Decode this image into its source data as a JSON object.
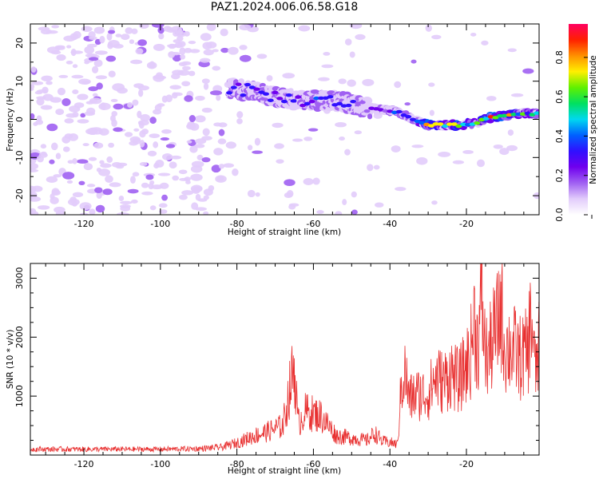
{
  "title": "PAZ1.2024.006.06.58.G18",
  "colors": {
    "signal_line": "#e83030",
    "colormap": [
      "#ffffff",
      "#e2ccfb",
      "#a060f2",
      "#7000ee",
      "#3010ff",
      "#0060ff",
      "#00d8f0",
      "#00e060",
      "#60f000",
      "#ffef00",
      "#ff9000",
      "#ff2000",
      "#ff0060"
    ]
  },
  "chart_data": [
    {
      "type": "heatmap",
      "title": "PAZ1.2024.006.06.58.G18",
      "xlabel": "Height of straight line (km)",
      "ylabel": "Frequency (Hz)",
      "xlim": [
        -134,
        -1
      ],
      "ylim": [
        -25,
        25
      ],
      "x_ticks": [
        -120,
        -100,
        -80,
        -60,
        -40,
        -20
      ],
      "y_ticks": [
        -20,
        -10,
        0,
        10,
        20
      ],
      "colorbar": {
        "label": "Normalized spectral amplitude",
        "range": [
          0,
          0.97
        ],
        "ticks": [
          0.0,
          0.2,
          0.4,
          0.6,
          0.8
        ]
      },
      "ridge": {
        "description_points_x_km": [
          -82,
          -76,
          -70,
          -64,
          -58,
          -52,
          -46,
          -42,
          -38,
          -34,
          -30,
          -26,
          -22,
          -18,
          -14,
          -10,
          -6,
          -2
        ],
        "frequency_hz": [
          8,
          7.5,
          6,
          5,
          5,
          4.5,
          3,
          2.5,
          2,
          0,
          -1.5,
          -1.5,
          -1.5,
          -1,
          0.5,
          1,
          1.5,
          1.5
        ],
        "peak_amplitude": [
          0.3,
          0.35,
          0.3,
          0.32,
          0.35,
          0.32,
          0.25,
          0.3,
          0.35,
          0.4,
          0.85,
          0.7,
          0.8,
          0.55,
          0.9,
          0.8,
          0.6,
          0.5
        ]
      }
    },
    {
      "type": "line",
      "xlabel": "Height of straight line (km)",
      "ylabel": "SNR (10 * v/v)",
      "xlim": [
        -134,
        -1
      ],
      "ylim": [
        0,
        3250
      ],
      "x_ticks": [
        -120,
        -100,
        -80,
        -60,
        -40,
        -20
      ],
      "y_ticks": [
        1000,
        2000,
        3000
      ],
      "series": [
        {
          "x": [
            -134,
            -120,
            -100,
            -90,
            -84,
            -80,
            -76,
            -72,
            -68,
            -65,
            -64,
            -62,
            -58,
            -54,
            -50,
            -46,
            -44,
            -42,
            -40,
            -38,
            -37,
            -36,
            -35,
            -33,
            -30,
            -28,
            -26,
            -24,
            -22,
            -20,
            -19,
            -18,
            -17,
            -16,
            -15,
            -14,
            -13,
            -12,
            -11,
            -10,
            -8,
            -6,
            -4,
            -3,
            -2,
            -1
          ],
          "y": [
            120,
            120,
            120,
            130,
            160,
            250,
            380,
            480,
            600,
            1850,
            650,
            900,
            800,
            400,
            350,
            300,
            450,
            280,
            260,
            220,
            1450,
            1700,
            1150,
            1250,
            1250,
            1600,
            1500,
            1700,
            1500,
            1850,
            2000,
            2800,
            2200,
            3250,
            2000,
            2100,
            2400,
            2600,
            3100,
            2200,
            2200,
            2000,
            2100,
            2900,
            1700,
            2200
          ]
        }
      ]
    }
  ]
}
